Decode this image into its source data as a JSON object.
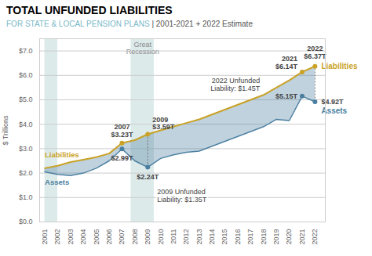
{
  "chart_data": {
    "type": "line",
    "title": "TOTAL UNFUNDED LIABILITIES",
    "subtitle": [
      {
        "text": "FOR STATE & LOCAL PENSION PLANS ",
        "color": "#7ab8c8"
      },
      {
        "text": "| 2001-2021 + 2022 Estimate",
        "color": "#555555"
      }
    ],
    "x": [
      2001,
      2002,
      2003,
      2004,
      2005,
      2006,
      2007,
      2008,
      2009,
      2010,
      2011,
      2012,
      2013,
      2014,
      2015,
      2016,
      2017,
      2018,
      2019,
      2020,
      2021,
      2022
    ],
    "series": [
      {
        "name": "Liabilities",
        "color": "#c9a227",
        "values": [
          2.2,
          2.3,
          2.45,
          2.55,
          2.65,
          2.8,
          3.23,
          3.35,
          3.59,
          3.75,
          3.9,
          4.05,
          4.2,
          4.4,
          4.6,
          4.8,
          5.0,
          5.2,
          5.5,
          5.8,
          6.14,
          6.37
        ]
      },
      {
        "name": "Assets",
        "color": "#4a7fa0",
        "values": [
          2.05,
          1.95,
          1.9,
          2.0,
          2.2,
          2.5,
          2.99,
          2.5,
          2.24,
          2.6,
          2.75,
          2.85,
          2.9,
          3.1,
          3.3,
          3.5,
          3.7,
          3.9,
          4.2,
          4.15,
          5.15,
          4.92
        ]
      }
    ],
    "xlim": [
      2000.6,
      2022.8
    ],
    "xticks": [
      2001,
      2002,
      2003,
      2004,
      2005,
      2006,
      2007,
      2008,
      2009,
      2010,
      2011,
      2012,
      2013,
      2014,
      2015,
      2016,
      2017,
      2018,
      2019,
      2020,
      2021,
      2022
    ],
    "ylim": [
      0.0,
      7.5
    ],
    "yticks": [
      {
        "value": 0.0,
        "label": "$0.0"
      },
      {
        "value": 1.0,
        "label": "$1.0"
      },
      {
        "value": 2.0,
        "label": "$2.0"
      },
      {
        "value": 3.0,
        "label": "$3.0"
      },
      {
        "value": 4.0,
        "label": "$4.0"
      },
      {
        "value": 5.0,
        "label": "$5.0"
      },
      {
        "value": 6.0,
        "label": "$6.0"
      },
      {
        "value": 7.0,
        "label": "$7.0"
      }
    ],
    "ylabel": "$ Trillions",
    "grid": true,
    "highlight_x": [
      2007,
      2009,
      2021,
      2022
    ],
    "shaded_ranges": [
      {
        "x0": 2001,
        "x1": 2002
      },
      {
        "x0": 2007.7,
        "x1": 2009.5,
        "label": "Great\nRecession"
      }
    ],
    "annotations": [
      {
        "text": "2007\n$3.23T",
        "x": 2007,
        "y": 3.23
      },
      {
        "text": "$2.99T",
        "x": 2007,
        "y": 2.99
      },
      {
        "text": "2009\n$3.59T",
        "x": 2009,
        "y": 3.59
      },
      {
        "text": "$2.24T",
        "x": 2009,
        "y": 2.24
      },
      {
        "text": "2021\n$6.14T",
        "x": 2021,
        "y": 6.14
      },
      {
        "text": "2022\n$6.37T",
        "x": 2022,
        "y": 6.37
      },
      {
        "text": "$5.15T",
        "x": 2021,
        "y": 5.15
      },
      {
        "text": "$4.92T",
        "x": 2022,
        "y": 4.92
      }
    ],
    "gaps": [
      {
        "x": 2009,
        "text": "2009 Unfunded\nLiability: $1.35T"
      },
      {
        "x": 2022,
        "text": "2022 Unfunded\nLiability: $1.45T"
      }
    ]
  }
}
